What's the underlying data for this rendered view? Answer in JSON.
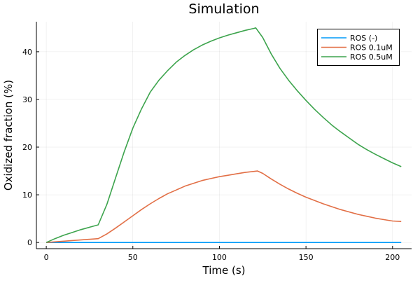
{
  "chart_data": {
    "type": "line",
    "title": "Simulation",
    "xlabel": "Time (s)",
    "ylabel": "Oxidized fraction (%)",
    "xlim": [
      -5.7,
      211
    ],
    "ylim": [
      -1.3,
      46.3
    ],
    "xticks": [
      0,
      50,
      100,
      150,
      200
    ],
    "yticks": [
      0,
      10,
      20,
      30,
      40
    ],
    "grid": true,
    "legend_position": "top-right",
    "series": [
      {
        "name": "ROS (-)",
        "color": "#009af9",
        "x": [
          0,
          205
        ],
        "y": [
          0,
          0
        ]
      },
      {
        "name": "ROS 0.1uM",
        "color": "#e26f46",
        "x": [
          0,
          30,
          35,
          40,
          45,
          50,
          55,
          60,
          65,
          70,
          75,
          80,
          85,
          90,
          95,
          100,
          105,
          110,
          115,
          120,
          122,
          125,
          130,
          135,
          140,
          145,
          150,
          155,
          160,
          165,
          170,
          175,
          180,
          185,
          190,
          195,
          200,
          205
        ],
        "y": [
          0,
          0.8,
          1.8,
          3,
          4.3,
          5.6,
          6.9,
          8.1,
          9.2,
          10.2,
          11,
          11.8,
          12.4,
          13,
          13.4,
          13.8,
          14.1,
          14.4,
          14.7,
          14.9,
          15,
          14.5,
          13.3,
          12.2,
          11.2,
          10.3,
          9.5,
          8.8,
          8.1,
          7.5,
          6.9,
          6.4,
          5.9,
          5.5,
          5.1,
          4.8,
          4.5,
          4.4
        ]
      },
      {
        "name": "ROS 0.5uM",
        "color": "#3da44d",
        "x": [
          0,
          5,
          10,
          15,
          20,
          25,
          30,
          35,
          40,
          45,
          50,
          55,
          60,
          65,
          70,
          75,
          80,
          85,
          90,
          95,
          100,
          105,
          110,
          115,
          120,
          121,
          125,
          130,
          135,
          140,
          145,
          150,
          155,
          160,
          165,
          170,
          175,
          180,
          185,
          190,
          195,
          200,
          205
        ],
        "y": [
          0,
          0.8,
          1.5,
          2.1,
          2.7,
          3.2,
          3.7,
          8,
          13.5,
          19,
          24,
          28,
          31.5,
          34,
          36,
          37.8,
          39.2,
          40.4,
          41.4,
          42.2,
          42.9,
          43.5,
          44,
          44.5,
          44.9,
          45,
          43,
          39.5,
          36.5,
          34,
          31.8,
          29.8,
          27.9,
          26.2,
          24.6,
          23.2,
          21.9,
          20.6,
          19.5,
          18.5,
          17.6,
          16.7,
          15.9
        ]
      }
    ]
  }
}
